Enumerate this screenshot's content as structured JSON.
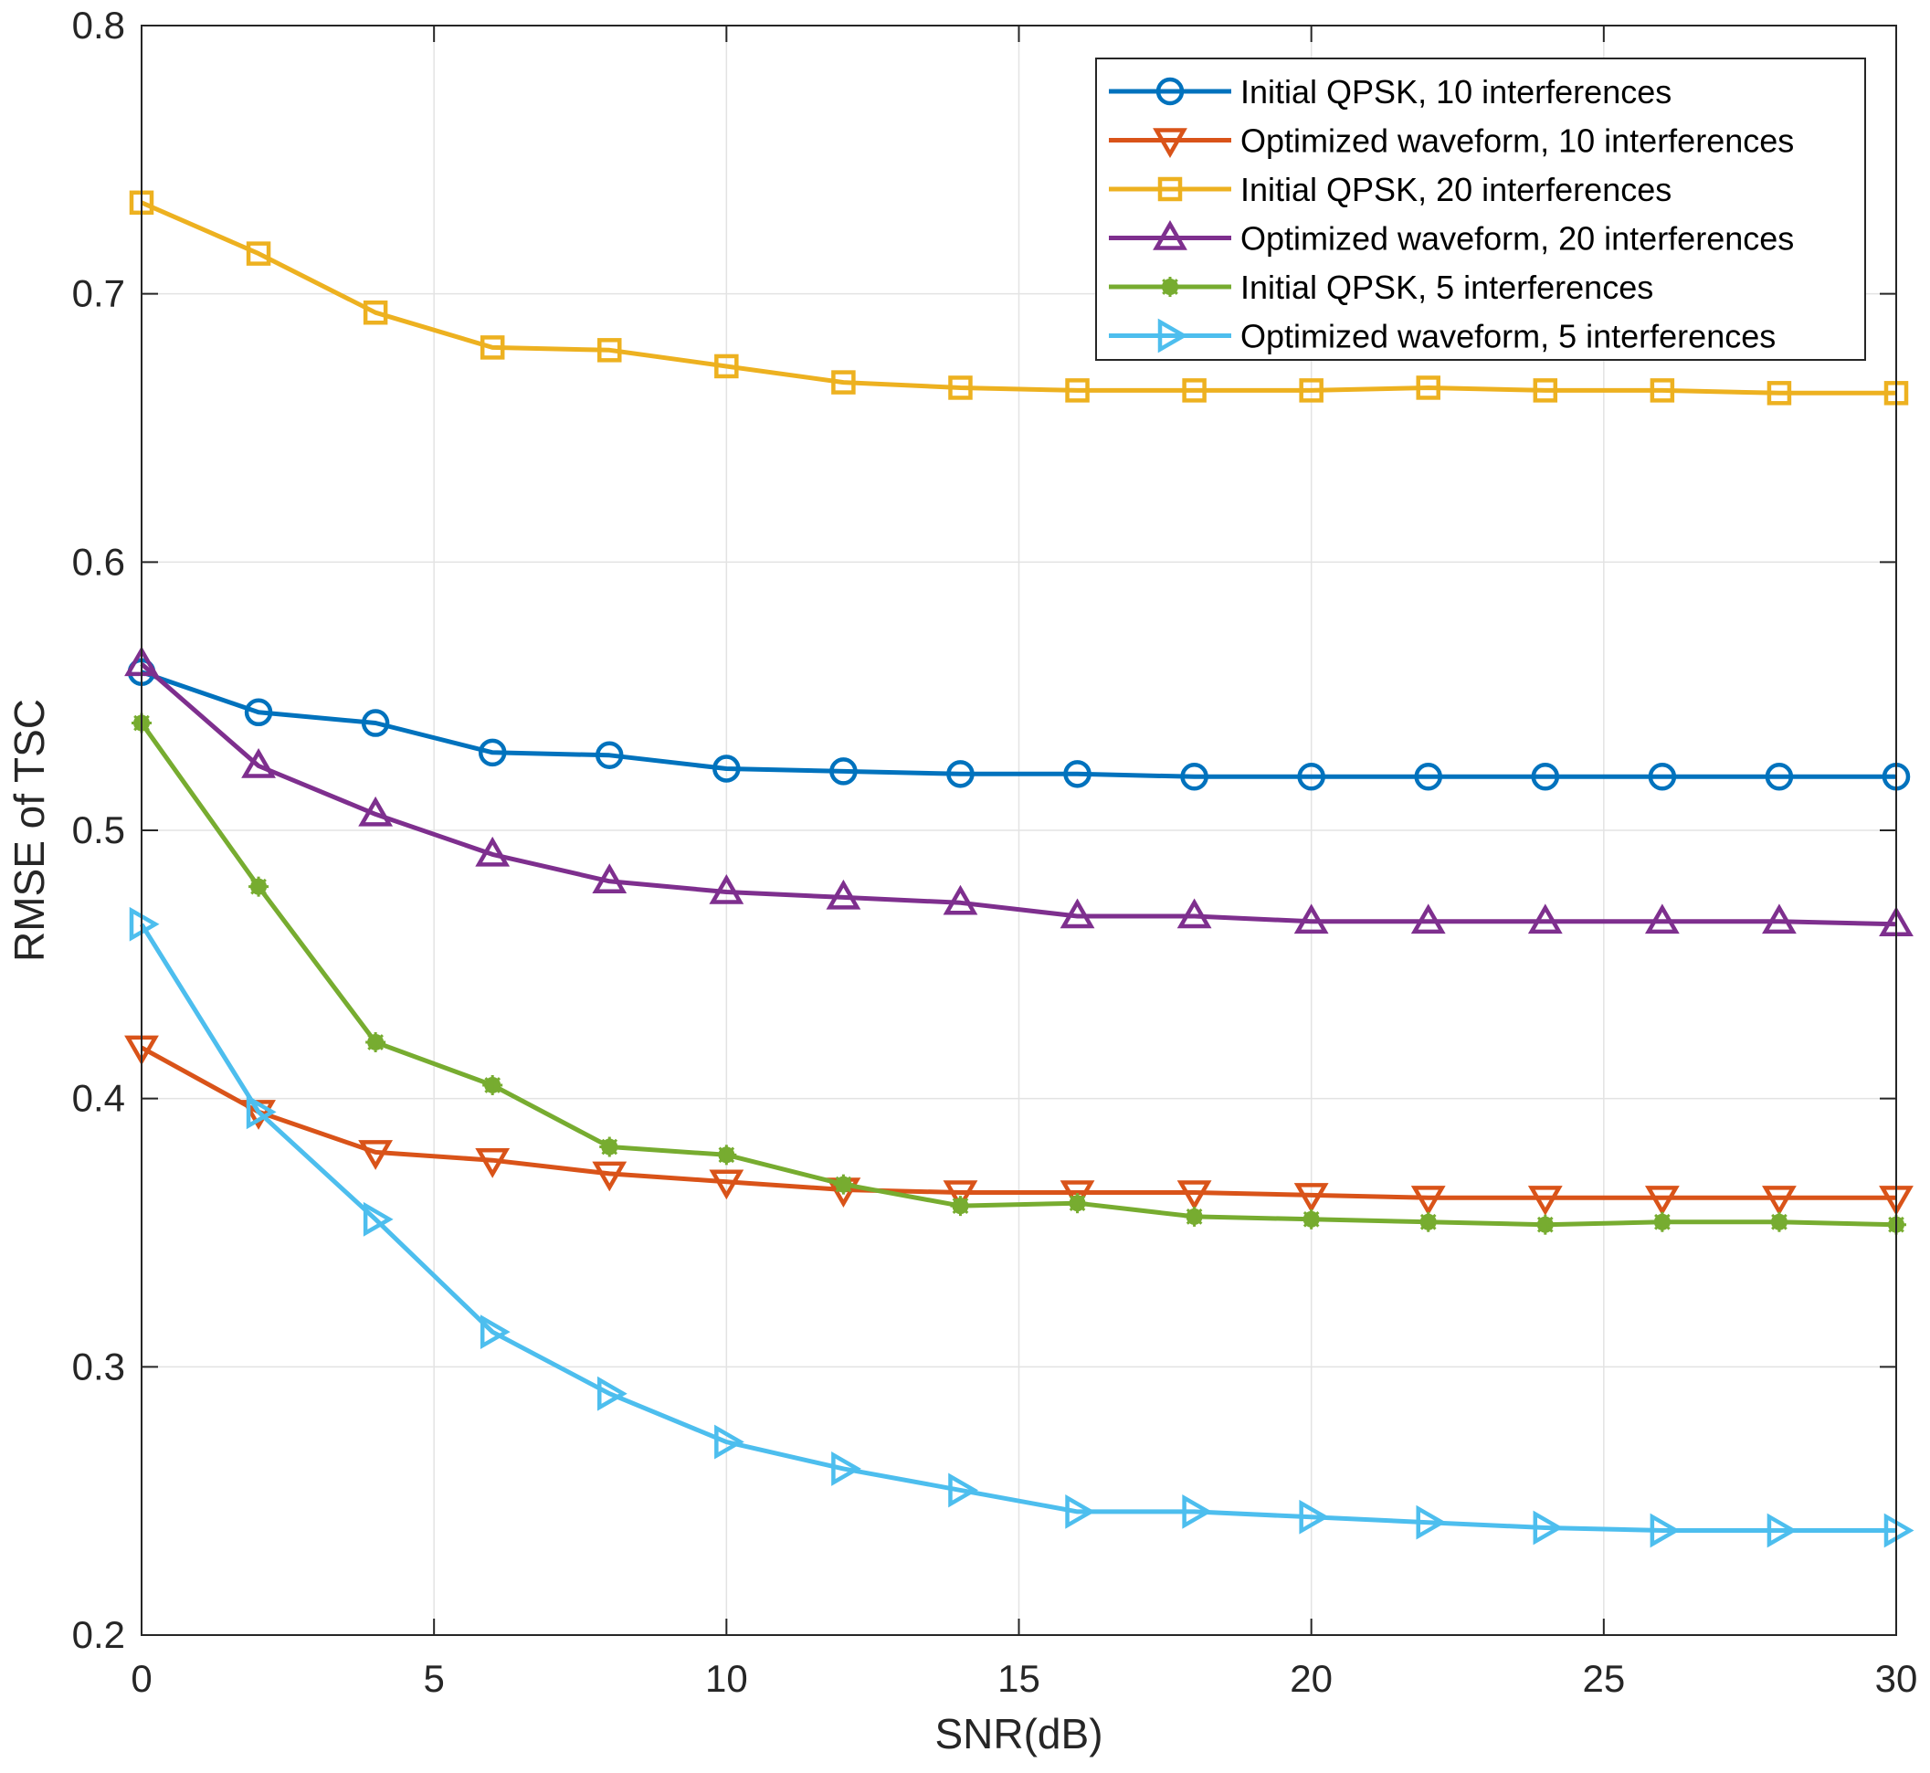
{
  "chart_data": {
    "type": "line",
    "title": "",
    "xlabel": "SNR(dB)",
    "ylabel": "RMSE of TSC",
    "xlim": [
      0,
      30
    ],
    "ylim": [
      0.2,
      0.8
    ],
    "xticks": [
      0,
      5,
      10,
      15,
      20,
      25,
      30
    ],
    "yticks": [
      0.2,
      0.3,
      0.4,
      0.5,
      0.6,
      0.7,
      0.8
    ],
    "xtick_labels": [
      "0",
      "5",
      "10",
      "15",
      "20",
      "25",
      "30"
    ],
    "ytick_labels": [
      "0.2",
      "0.3",
      "0.4",
      "0.5",
      "0.6",
      "0.7",
      "0.8"
    ],
    "grid": true,
    "legend_position": "top-right",
    "x": [
      0,
      2,
      4,
      6,
      8,
      10,
      12,
      14,
      16,
      18,
      20,
      22,
      24,
      26,
      28,
      30
    ],
    "series": [
      {
        "name": "Initial QPSK, 10 interferences",
        "color": "#0072BD",
        "marker": "circle",
        "values": [
          0.559,
          0.544,
          0.54,
          0.529,
          0.528,
          0.523,
          0.522,
          0.521,
          0.521,
          0.52,
          0.52,
          0.52,
          0.52,
          0.52,
          0.52,
          0.52
        ]
      },
      {
        "name": "Optimized waveform, 10 interferences",
        "color": "#D95319",
        "marker": "triangle-down",
        "values": [
          0.419,
          0.395,
          0.38,
          0.377,
          0.372,
          0.369,
          0.366,
          0.365,
          0.365,
          0.365,
          0.364,
          0.363,
          0.363,
          0.363,
          0.363,
          0.363
        ]
      },
      {
        "name": "Initial QPSK, 20 interferences",
        "color": "#EDB120",
        "marker": "square",
        "values": [
          0.734,
          0.715,
          0.693,
          0.68,
          0.679,
          0.673,
          0.667,
          0.665,
          0.664,
          0.664,
          0.664,
          0.665,
          0.664,
          0.664,
          0.663,
          0.663
        ]
      },
      {
        "name": "Optimized waveform, 20 interferences",
        "color": "#7E2F8E",
        "marker": "triangle-up",
        "values": [
          0.562,
          0.524,
          0.506,
          0.491,
          0.481,
          0.477,
          0.475,
          0.473,
          0.468,
          0.468,
          0.466,
          0.466,
          0.466,
          0.466,
          0.466,
          0.465
        ]
      },
      {
        "name": "Initial QPSK, 5 interferences",
        "color": "#77AC30",
        "marker": "asterisk",
        "values": [
          0.54,
          0.479,
          0.421,
          0.405,
          0.382,
          0.379,
          0.368,
          0.36,
          0.361,
          0.356,
          0.355,
          0.354,
          0.353,
          0.354,
          0.354,
          0.353
        ]
      },
      {
        "name": "Optimized waveform, 5 interferences",
        "color": "#4DBEEE",
        "marker": "triangle-right",
        "values": [
          0.465,
          0.395,
          0.355,
          0.313,
          0.29,
          0.272,
          0.262,
          0.254,
          0.246,
          0.246,
          0.244,
          0.242,
          0.24,
          0.239,
          0.239,
          0.239
        ]
      }
    ]
  }
}
